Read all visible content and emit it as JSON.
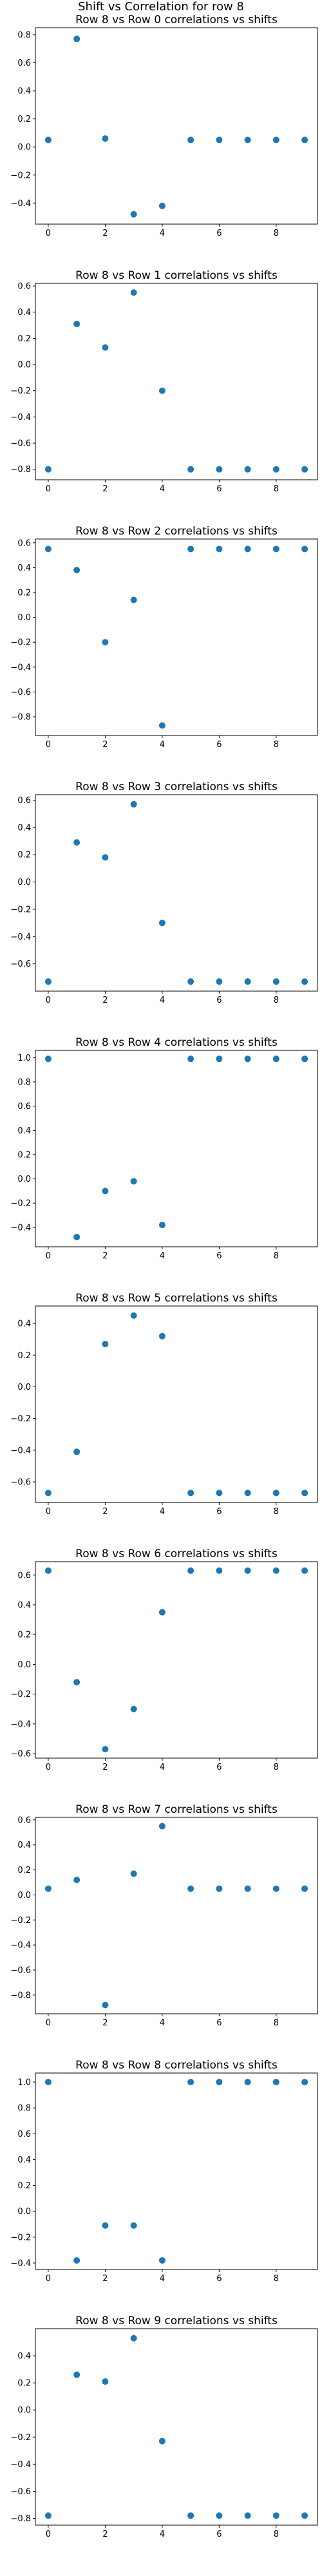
{
  "figure_title": "Shift vs Correlation for row 8",
  "chart_data": [
    {
      "type": "scatter",
      "title": "Row 8 vs Row 0 correlations vs shifts",
      "x": [
        0,
        1,
        2,
        3,
        4,
        5,
        6,
        7,
        8,
        9
      ],
      "y": [
        0.05,
        0.77,
        0.06,
        -0.48,
        -0.42,
        0.05,
        0.05,
        0.05,
        0.05,
        0.05
      ],
      "xlim": [
        -0.45,
        9.45
      ],
      "ylim": [
        -0.55,
        0.85
      ],
      "xticks": [
        0,
        2,
        4,
        6,
        8
      ],
      "xtick_labels": [
        "0",
        "2",
        "4",
        "6",
        "8"
      ],
      "yticks": [
        -0.4,
        -0.2,
        0.0,
        0.2,
        0.4,
        0.6,
        0.8
      ],
      "ytick_labels": [
        "−0.4",
        "−0.2",
        "0.0",
        "0.2",
        "0.4",
        "0.6",
        "0.8"
      ],
      "grid": false,
      "color": "#1f77b4"
    },
    {
      "type": "scatter",
      "title": "Row 8 vs Row 1 correlations vs shifts",
      "x": [
        0,
        1,
        2,
        3,
        4,
        5,
        6,
        7,
        8,
        9
      ],
      "y": [
        -0.8,
        0.31,
        0.13,
        0.55,
        -0.2,
        -0.8,
        -0.8,
        -0.8,
        -0.8,
        -0.8
      ],
      "xlim": [
        -0.45,
        9.45
      ],
      "ylim": [
        -0.88,
        0.62
      ],
      "xticks": [
        0,
        2,
        4,
        6,
        8
      ],
      "xtick_labels": [
        "0",
        "2",
        "4",
        "6",
        "8"
      ],
      "yticks": [
        -0.8,
        -0.6,
        -0.4,
        -0.2,
        0.0,
        0.2,
        0.4,
        0.6
      ],
      "ytick_labels": [
        "−0.8",
        "−0.6",
        "−0.4",
        "−0.2",
        "0.0",
        "0.2",
        "0.4",
        "0.6"
      ],
      "grid": false,
      "color": "#1f77b4"
    },
    {
      "type": "scatter",
      "title": "Row 8 vs Row 2 correlations vs shifts",
      "x": [
        0,
        1,
        2,
        3,
        4,
        5,
        6,
        7,
        8,
        9
      ],
      "y": [
        0.55,
        0.38,
        -0.2,
        0.14,
        -0.87,
        0.55,
        0.55,
        0.55,
        0.55,
        0.55
      ],
      "xlim": [
        -0.45,
        9.45
      ],
      "ylim": [
        -0.95,
        0.63
      ],
      "xticks": [
        0,
        2,
        4,
        6,
        8
      ],
      "xtick_labels": [
        "0",
        "2",
        "4",
        "6",
        "8"
      ],
      "yticks": [
        -0.8,
        -0.6,
        -0.4,
        -0.2,
        0.0,
        0.2,
        0.4,
        0.6
      ],
      "ytick_labels": [
        "−0.8",
        "−0.6",
        "−0.4",
        "−0.2",
        "0.0",
        "0.2",
        "0.4",
        "0.6"
      ],
      "grid": false,
      "color": "#1f77b4"
    },
    {
      "type": "scatter",
      "title": "Row 8 vs Row 3 correlations vs shifts",
      "x": [
        0,
        1,
        2,
        3,
        4,
        5,
        6,
        7,
        8,
        9
      ],
      "y": [
        -0.73,
        0.29,
        0.18,
        0.57,
        -0.3,
        -0.73,
        -0.73,
        -0.73,
        -0.73,
        -0.73
      ],
      "xlim": [
        -0.45,
        9.45
      ],
      "ylim": [
        -0.8,
        0.64
      ],
      "xticks": [
        0,
        2,
        4,
        6,
        8
      ],
      "xtick_labels": [
        "0",
        "2",
        "4",
        "6",
        "8"
      ],
      "yticks": [
        -0.6,
        -0.4,
        -0.2,
        0.0,
        0.2,
        0.4,
        0.6
      ],
      "ytick_labels": [
        "−0.6",
        "−0.4",
        "−0.2",
        "0.0",
        "0.2",
        "0.4",
        "0.6"
      ],
      "grid": false,
      "color": "#1f77b4"
    },
    {
      "type": "scatter",
      "title": "Row 8 vs Row 4 correlations vs shifts",
      "x": [
        0,
        1,
        2,
        3,
        4,
        5,
        6,
        7,
        8,
        9
      ],
      "y": [
        0.99,
        -0.48,
        -0.1,
        -0.02,
        -0.38,
        0.99,
        0.99,
        0.99,
        0.99,
        0.99
      ],
      "xlim": [
        -0.45,
        9.45
      ],
      "ylim": [
        -0.56,
        1.06
      ],
      "xticks": [
        0,
        2,
        4,
        6,
        8
      ],
      "xtick_labels": [
        "0",
        "2",
        "4",
        "6",
        "8"
      ],
      "yticks": [
        -0.4,
        -0.2,
        0.0,
        0.2,
        0.4,
        0.6,
        0.8,
        1.0
      ],
      "ytick_labels": [
        "−0.4",
        "−0.2",
        "0.0",
        "0.2",
        "0.4",
        "0.6",
        "0.8",
        "1.0"
      ],
      "grid": false,
      "color": "#1f77b4"
    },
    {
      "type": "scatter",
      "title": "Row 8 vs Row 5 correlations vs shifts",
      "x": [
        0,
        1,
        2,
        3,
        4,
        5,
        6,
        7,
        8,
        9
      ],
      "y": [
        -0.67,
        -0.41,
        0.27,
        0.45,
        0.32,
        -0.67,
        -0.67,
        -0.67,
        -0.67,
        -0.67
      ],
      "xlim": [
        -0.45,
        9.45
      ],
      "ylim": [
        -0.73,
        0.51
      ],
      "xticks": [
        0,
        2,
        4,
        6,
        8
      ],
      "xtick_labels": [
        "0",
        "2",
        "4",
        "6",
        "8"
      ],
      "yticks": [
        -0.6,
        -0.4,
        -0.2,
        0.0,
        0.2,
        0.4
      ],
      "ytick_labels": [
        "−0.6",
        "−0.4",
        "−0.2",
        "0.0",
        "0.2",
        "0.4"
      ],
      "grid": false,
      "color": "#1f77b4"
    },
    {
      "type": "scatter",
      "title": "Row 8 vs Row 6 correlations vs shifts",
      "x": [
        0,
        1,
        2,
        3,
        4,
        5,
        6,
        7,
        8,
        9
      ],
      "y": [
        0.63,
        -0.12,
        -0.57,
        -0.3,
        0.35,
        0.63,
        0.63,
        0.63,
        0.63,
        0.63
      ],
      "xlim": [
        -0.45,
        9.45
      ],
      "ylim": [
        -0.63,
        0.69
      ],
      "xticks": [
        0,
        2,
        4,
        6,
        8
      ],
      "xtick_labels": [
        "0",
        "2",
        "4",
        "6",
        "8"
      ],
      "yticks": [
        -0.6,
        -0.4,
        -0.2,
        0.0,
        0.2,
        0.4,
        0.6
      ],
      "ytick_labels": [
        "−0.6",
        "−0.4",
        "−0.2",
        "0.0",
        "0.2",
        "0.4",
        "0.6"
      ],
      "grid": false,
      "color": "#1f77b4"
    },
    {
      "type": "scatter",
      "title": "Row 8 vs Row 7 correlations vs shifts",
      "x": [
        0,
        1,
        2,
        3,
        4,
        5,
        6,
        7,
        8,
        9
      ],
      "y": [
        0.05,
        0.12,
        -0.88,
        0.17,
        0.55,
        0.05,
        0.05,
        0.05,
        0.05,
        0.05
      ],
      "xlim": [
        -0.45,
        9.45
      ],
      "ylim": [
        -0.95,
        0.62
      ],
      "xticks": [
        0,
        2,
        4,
        6,
        8
      ],
      "xtick_labels": [
        "0",
        "2",
        "4",
        "6",
        "8"
      ],
      "yticks": [
        -0.8,
        -0.6,
        -0.4,
        -0.2,
        0.0,
        0.2,
        0.4,
        0.6
      ],
      "ytick_labels": [
        "−0.8",
        "−0.6",
        "−0.4",
        "−0.2",
        "0.0",
        "0.2",
        "0.4",
        "0.6"
      ],
      "grid": false,
      "color": "#1f77b4"
    },
    {
      "type": "scatter",
      "title": "Row 8 vs Row 8 correlations vs shifts",
      "x": [
        0,
        1,
        2,
        3,
        4,
        5,
        6,
        7,
        8,
        9
      ],
      "y": [
        1.0,
        -0.38,
        -0.11,
        -0.11,
        -0.38,
        1.0,
        1.0,
        1.0,
        1.0,
        1.0
      ],
      "xlim": [
        -0.45,
        9.45
      ],
      "ylim": [
        -0.45,
        1.07
      ],
      "xticks": [
        0,
        2,
        4,
        6,
        8
      ],
      "xtick_labels": [
        "0",
        "2",
        "4",
        "6",
        "8"
      ],
      "yticks": [
        -0.4,
        -0.2,
        0.0,
        0.2,
        0.4,
        0.6,
        0.8,
        1.0
      ],
      "ytick_labels": [
        "−0.4",
        "−0.2",
        "0.0",
        "0.2",
        "0.4",
        "0.6",
        "0.8",
        "1.0"
      ],
      "grid": false,
      "color": "#1f77b4"
    },
    {
      "type": "scatter",
      "title": "Row 8 vs Row 9 correlations vs shifts",
      "x": [
        0,
        1,
        2,
        3,
        4,
        5,
        6,
        7,
        8,
        9
      ],
      "y": [
        -0.78,
        0.26,
        0.21,
        0.53,
        -0.23,
        -0.78,
        -0.78,
        -0.78,
        -0.78,
        -0.78
      ],
      "xlim": [
        -0.45,
        9.45
      ],
      "ylim": [
        -0.85,
        0.6
      ],
      "xticks": [
        0,
        2,
        4,
        6,
        8
      ],
      "xtick_labels": [
        "0",
        "2",
        "4",
        "6",
        "8"
      ],
      "yticks": [
        -0.8,
        -0.6,
        -0.4,
        -0.2,
        0.0,
        0.2,
        0.4
      ],
      "ytick_labels": [
        "−0.8",
        "−0.6",
        "−0.4",
        "−0.2",
        "0.0",
        "0.2",
        "0.4"
      ],
      "grid": false,
      "color": "#1f77b4"
    }
  ]
}
